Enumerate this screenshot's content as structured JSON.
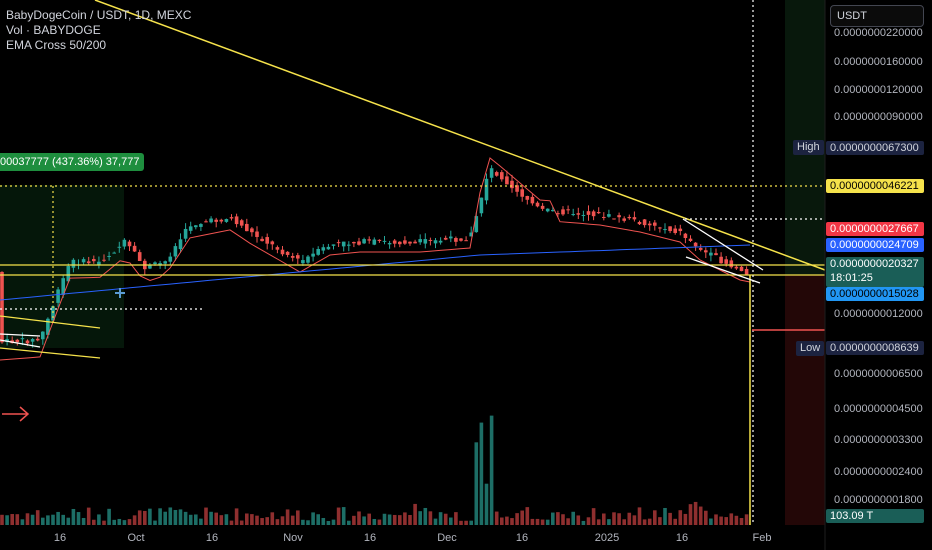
{
  "legend": {
    "symbol": "BabyDogeCoin / USDT, 1D, MEXC",
    "volume": "Vol · BABYDOGE",
    "indicator": "EMA Cross 50/200"
  },
  "currency_button": "USDT",
  "measure_label": "00037777 (437.36%) 37,777",
  "price_labels": {
    "high_tag": "High",
    "high_value": "0.0000000067300",
    "level1": "0.0000000046221",
    "ema50": "0.0000000027667",
    "ema200": "0.0000000024709",
    "last": "0.0000000020327",
    "countdown": "18:01:25",
    "support": "0.0000000015028",
    "low_tag": "Low",
    "low_value": "0.0000000008639",
    "volume_last": "103.09 T"
  },
  "colors": {
    "up": "#26a69a",
    "down": "#ef5350",
    "trendline": "#f5e24b",
    "ema50": "#ef5350",
    "ema200": "#2962ff",
    "volume_up": "#1d6e66",
    "volume_down": "#8f2f2f"
  },
  "chart_data": {
    "type": "candlestick",
    "symbol": "BabyDogeCoin / USDT",
    "interval": "1D",
    "exchange": "MEXC",
    "y_axis_ticks": [
      "0.0000000220000",
      "0.0000000160000",
      "0.0000000120000",
      "0.0000000090000",
      "0.0000000012000",
      "0.0000000006500",
      "0.0000000004500",
      "0.0000000003300",
      "0.0000000002400",
      "0.0000000001800"
    ],
    "x_axis_ticks": [
      "16",
      "Oct",
      "16",
      "Nov",
      "16",
      "Dec",
      "16",
      "2025",
      "16",
      "Feb"
    ],
    "high": 6.73e-09,
    "low": 8.639e-10,
    "last": 2.0327e-09,
    "horizontal_levels": [
      4.6221e-09,
      1.5028e-09
    ],
    "ema_50_last": 2.7667e-09,
    "ema_200_last": 2.4709e-09,
    "volume_last": "103.09 T"
  }
}
